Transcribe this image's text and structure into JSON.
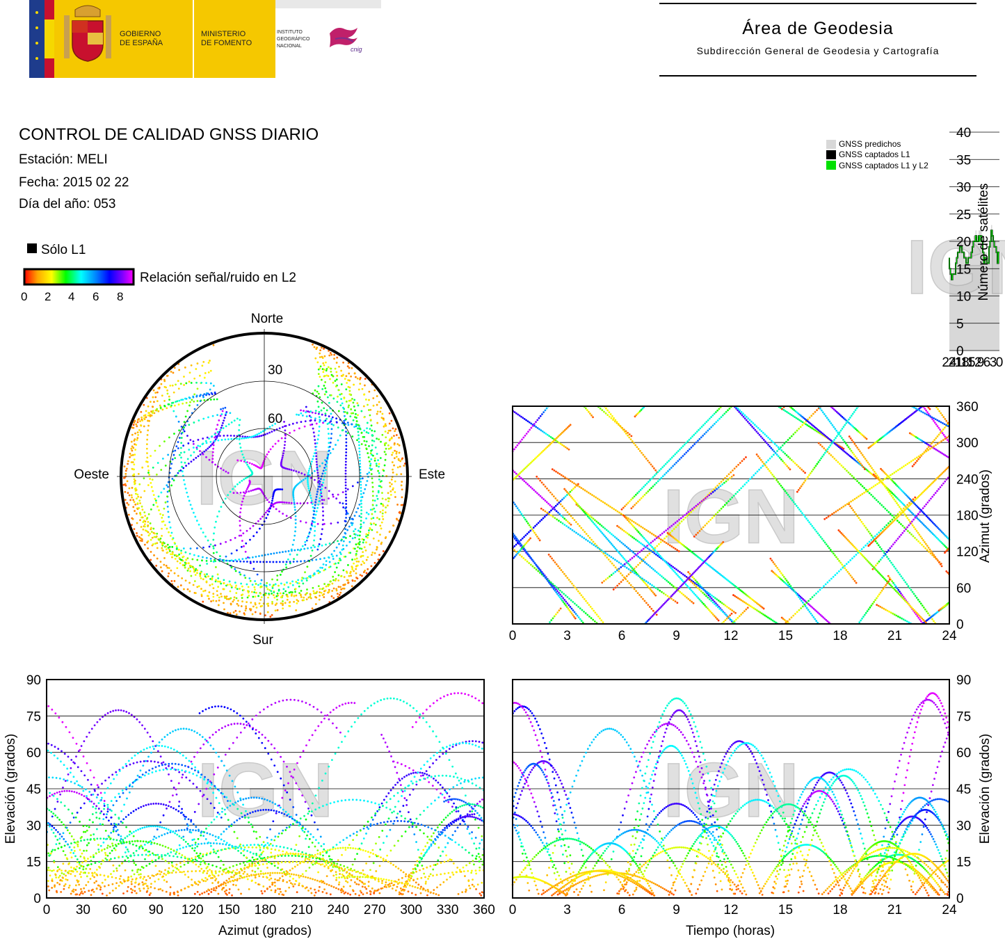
{
  "header": {
    "gobierno": [
      "GOBIERNO",
      "DE ESPAÑA"
    ],
    "ministerio": [
      "MINISTERIO",
      "DE FOMENTO"
    ],
    "instituto": [
      "INSTITUTO",
      "GEOGRÁFICO",
      "NACIONAL"
    ],
    "cnig_logo": "cnig",
    "area_title": "Área de Geodesia",
    "area_subtitle": "Subdirección General de Geodesia y Cartografía"
  },
  "report": {
    "title": "CONTROL DE CALIDAD GNSS DIARIO",
    "station": "Estación: MELI",
    "date": "Fecha: 2015 02 22",
    "doy": "Día del año: 053"
  },
  "legend": {
    "l1_only": "Sólo L1",
    "snr_label": "Relación señal/ruido en L2",
    "snr_ticks": [
      "0",
      "2",
      "4",
      "6",
      "8"
    ]
  },
  "watermark": "IGN",
  "colors": {
    "predicted": "#d8d8d8",
    "l1": "#000000",
    "l1l2": "#00e000",
    "snr_scale": [
      "#ff0000",
      "#ffa500",
      "#ffff00",
      "#00ff00",
      "#00ffff",
      "#0080ff",
      "#0000ff",
      "#8000ff",
      "#ff00ff"
    ]
  },
  "chart_data": [
    {
      "id": "sat-count",
      "type": "area",
      "title": "",
      "xlabel": "",
      "ylabel": "Número de satélites",
      "xlim": [
        0,
        24
      ],
      "ylim": [
        0,
        40
      ],
      "xticks": [
        "0",
        "3",
        "6",
        "9",
        "12",
        "15",
        "18",
        "21",
        "24"
      ],
      "yticks": [
        "0",
        "5",
        "10",
        "15",
        "20",
        "25",
        "30",
        "35",
        "40"
      ],
      "grid": "horizontal",
      "legend_position": "top-right",
      "legend": [
        "GNSS predichos",
        "GNSS captados L1",
        "GNSS captados L1 y L2"
      ],
      "x": [
        0,
        0.5,
        1,
        1.5,
        2,
        2.5,
        3,
        3.5,
        4,
        4.5,
        5,
        5.5,
        6,
        6.5,
        7,
        7.5,
        8,
        8.5,
        9,
        9.5,
        10,
        10.5,
        11,
        11.5,
        12,
        12.5,
        13,
        13.5,
        14,
        14.5,
        15,
        15.5,
        16,
        16.5,
        17,
        17.5,
        18,
        18.5,
        19,
        19.5,
        20,
        20.5,
        21,
        21.5,
        22,
        22.5,
        23,
        23.5,
        24
      ],
      "series": [
        {
          "name": "GNSS predichos",
          "values": [
            19,
            17,
            19,
            20,
            20,
            21,
            22,
            23,
            21,
            20,
            17,
            17,
            18,
            18,
            17,
            19,
            21,
            22,
            22,
            22,
            21,
            21,
            22,
            21,
            21,
            20,
            19,
            18,
            18,
            18,
            17,
            17,
            18,
            18,
            19,
            19,
            20,
            20,
            19,
            19,
            18,
            17,
            15,
            15,
            15,
            14,
            15,
            16,
            18
          ]
        },
        {
          "name": "GNSS captados L1",
          "values": [
            18,
            16,
            18,
            19,
            19,
            20,
            21,
            22,
            20,
            19,
            16,
            16,
            17,
            17,
            16,
            18,
            20,
            21,
            21,
            21,
            20,
            20,
            21,
            20,
            20,
            19,
            18,
            17,
            17,
            17,
            16,
            16,
            17,
            17,
            18,
            18,
            19,
            19,
            18,
            18,
            17,
            16,
            14,
            14,
            14,
            13,
            14,
            15,
            17
          ]
        },
        {
          "name": "GNSS captados L1 y L2",
          "values": [
            18,
            16,
            18,
            19,
            19,
            20,
            21,
            22,
            20,
            19,
            16,
            16,
            17,
            17,
            16,
            18,
            20,
            21,
            20,
            21,
            20,
            20,
            21,
            20,
            20,
            19,
            18,
            17,
            17,
            17,
            16,
            16,
            17,
            17,
            18,
            18,
            19,
            19,
            18,
            18,
            17,
            16,
            14,
            14,
            14,
            13,
            14,
            15,
            17
          ]
        }
      ]
    },
    {
      "id": "sky-plot",
      "type": "scatter",
      "title": "",
      "xlabel": "",
      "ylabel": "",
      "directions": {
        "north": "Norte",
        "south": "Sur",
        "west": "Oeste",
        "east": "Este"
      },
      "elevation_ticks": [
        "30",
        "60"
      ],
      "note": ""
    },
    {
      "id": "azimuth-time",
      "type": "scatter",
      "title": "",
      "xlabel": "",
      "ylabel": "Azimut (grados)",
      "xlim": [
        0,
        24
      ],
      "ylim": [
        0,
        360
      ],
      "xticks": [
        "0",
        "3",
        "6",
        "9",
        "12",
        "15",
        "18",
        "21",
        "24"
      ],
      "yticks": [
        "0",
        "60",
        "120",
        "180",
        "240",
        "300",
        "360"
      ],
      "grid": "horizontal"
    },
    {
      "id": "elevation-azimuth",
      "type": "scatter",
      "title": "",
      "xlabel": "Azimut (grados)",
      "ylabel": "Elevación (grados)",
      "xlim": [
        0,
        360
      ],
      "ylim": [
        0,
        90
      ],
      "xticks": [
        "0",
        "30",
        "60",
        "90",
        "120",
        "150",
        "180",
        "210",
        "240",
        "270",
        "300",
        "330",
        "360"
      ],
      "yticks": [
        "0",
        "15",
        "30",
        "45",
        "60",
        "75",
        "90"
      ],
      "grid": "horizontal"
    },
    {
      "id": "elevation-time",
      "type": "line",
      "title": "",
      "xlabel": "Tiempo (horas)",
      "ylabel": "Elevación (grados)",
      "xlim": [
        0,
        24
      ],
      "ylim": [
        0,
        90
      ],
      "xticks": [
        "0",
        "3",
        "6",
        "9",
        "12",
        "15",
        "18",
        "21",
        "24"
      ],
      "yticks": [
        "0",
        "15",
        "30",
        "45",
        "60",
        "75",
        "90"
      ],
      "grid": "horizontal"
    }
  ]
}
